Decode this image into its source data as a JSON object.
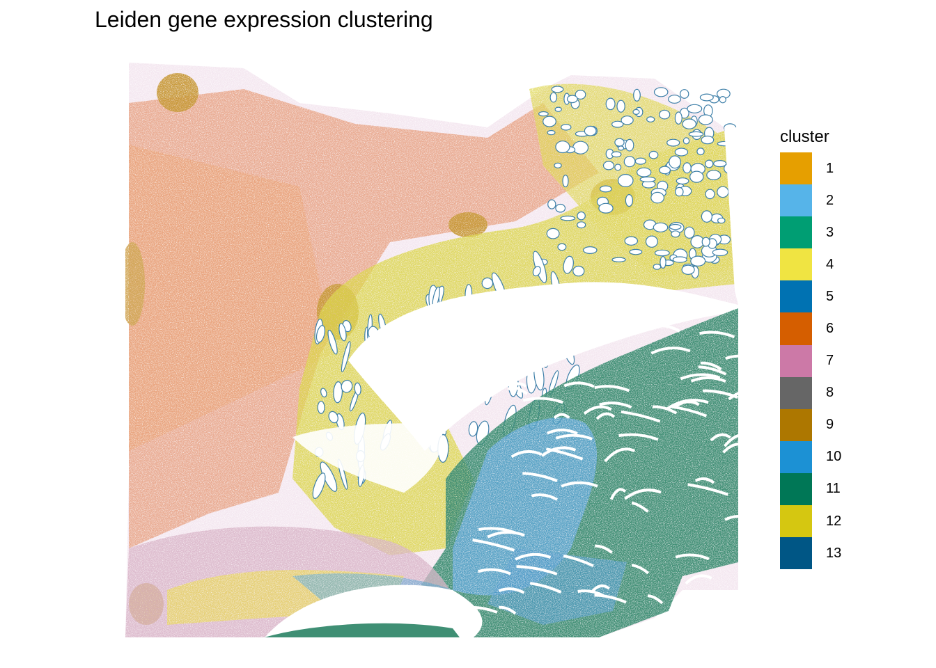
{
  "chart_data": {
    "type": "scatter",
    "title": "Leiden gene expression clustering",
    "xlabel": "",
    "ylabel": "",
    "grid": false,
    "axes_visible": false,
    "legend": {
      "title": "cluster",
      "placement": "right",
      "entries": [
        {
          "label": "1",
          "color": "#E69F00"
        },
        {
          "label": "2",
          "color": "#56B4E9"
        },
        {
          "label": "3",
          "color": "#009E73"
        },
        {
          "label": "4",
          "color": "#F0E442"
        },
        {
          "label": "5",
          "color": "#0072B2"
        },
        {
          "label": "6",
          "color": "#D55E00"
        },
        {
          "label": "7",
          "color": "#CC79A7"
        },
        {
          "label": "8",
          "color": "#666666"
        },
        {
          "label": "9",
          "color": "#AD7700"
        },
        {
          "label": "10",
          "color": "#1C91D4"
        },
        {
          "label": "11",
          "color": "#007756"
        },
        {
          "label": "12",
          "color": "#D5C711"
        },
        {
          "label": "13",
          "color": "#005685"
        }
      ]
    }
  }
}
